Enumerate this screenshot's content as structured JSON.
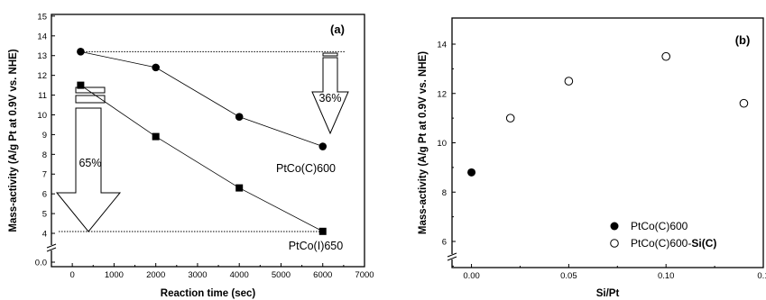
{
  "chart_data": [
    {
      "type": "line",
      "panel_label": "(a)",
      "xlabel": "Reaction time (sec)",
      "ylabel": "Mass-activity (A/g Pt at 0.9V vs. NHE)",
      "xlim": [
        -500,
        7000
      ],
      "ylim": [
        0,
        15
      ],
      "y_axis_break": true,
      "x_ticks": [
        "0",
        "1000",
        "2000",
        "3000",
        "4000",
        "5000",
        "6000",
        "7000"
      ],
      "y_ticks": [
        "0.0",
        "4",
        "5",
        "6",
        "7",
        "8",
        "9",
        "10",
        "11",
        "12",
        "13",
        "14",
        "15"
      ],
      "series": [
        {
          "name": "PtCo(C)600",
          "marker": "circle",
          "x": [
            200,
            2000,
            4000,
            6000
          ],
          "y": [
            13.2,
            12.4,
            9.9,
            8.4
          ]
        },
        {
          "name": "PtCo(I)650",
          "marker": "square",
          "x": [
            200,
            2000,
            4000,
            6000
          ],
          "y": [
            11.5,
            8.9,
            6.3,
            4.1
          ]
        }
      ],
      "annotations": [
        "36%",
        "65%"
      ]
    },
    {
      "type": "scatter",
      "panel_label": "(b)",
      "xlabel": "Si/Pt",
      "ylabel": "Mass-activity (A/g Pt at 0.9V vs. NHE)",
      "xlim": [
        -0.01,
        0.15
      ],
      "ylim": [
        4.5,
        15
      ],
      "y_axis_break": true,
      "x_ticks": [
        "0.00",
        "0.05",
        "0.10",
        "0.1"
      ],
      "y_ticks": [
        "6",
        "8",
        "10",
        "12",
        "14"
      ],
      "series": [
        {
          "name": "PtCo(C)600",
          "legend_plain": "PtCo(C)600",
          "legend_bold": "",
          "marker": "filled-circle",
          "x": [
            0.0
          ],
          "y": [
            8.8
          ]
        },
        {
          "name": "PtCo(C)600-Si(C)",
          "legend_plain": "PtCo(C)600-",
          "legend_bold": "Si(C)",
          "marker": "open-circle",
          "x": [
            0.02,
            0.05,
            0.1,
            0.14
          ],
          "y": [
            11.0,
            12.5,
            13.5,
            11.6
          ]
        }
      ],
      "legend_position": "bottom-right"
    }
  ]
}
